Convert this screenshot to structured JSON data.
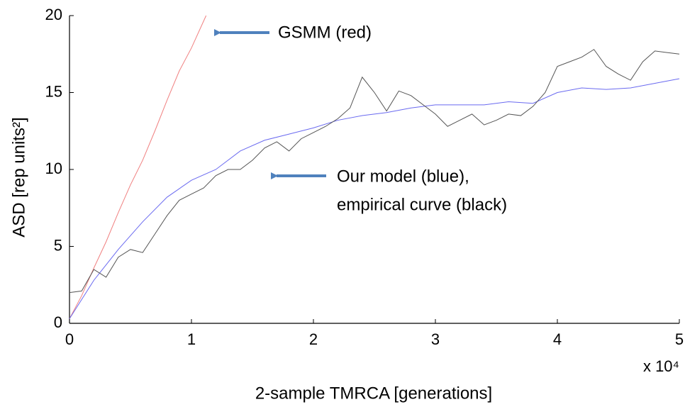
{
  "chart_data": {
    "type": "line",
    "xlabel": "2-sample TMRCA [generations]",
    "ylabel": "ASD [rep units²]",
    "x_multiplier": "x 10⁴",
    "xlim": [
      0,
      5
    ],
    "xticks": [
      0,
      1,
      2,
      3,
      4,
      5
    ],
    "ylim": [
      0,
      20
    ],
    "yticks": [
      0,
      5,
      10,
      15,
      20
    ],
    "grid": false,
    "annotations": [
      "GSMM (red)",
      "Our model (blue),",
      "empirical curve (black)"
    ],
    "series": [
      {
        "name": "GSMM",
        "color": "#f08080",
        "x": [
          0,
          0.1,
          0.2,
          0.3,
          0.4,
          0.5,
          0.6,
          0.7,
          0.8,
          0.9,
          1.0,
          1.12
        ],
        "values": [
          0.3,
          1.8,
          3.6,
          5.3,
          7.2,
          9.0,
          10.6,
          12.5,
          14.5,
          16.4,
          17.9,
          20
        ]
      },
      {
        "name": "Our model",
        "color": "#6a6af0",
        "x": [
          0,
          0.2,
          0.4,
          0.6,
          0.8,
          1.0,
          1.2,
          1.4,
          1.6,
          1.8,
          2.0,
          2.2,
          2.4,
          2.6,
          2.8,
          3.0,
          3.2,
          3.4,
          3.6,
          3.8,
          4.0,
          4.2,
          4.4,
          4.6,
          4.8,
          5.0
        ],
        "values": [
          0.3,
          2.8,
          4.8,
          6.6,
          8.2,
          9.3,
          10.0,
          11.2,
          11.9,
          12.3,
          12.7,
          13.2,
          13.5,
          13.7,
          14.0,
          14.2,
          14.2,
          14.2,
          14.4,
          14.3,
          15.0,
          15.3,
          15.2,
          15.3,
          15.6,
          15.9
        ]
      },
      {
        "name": "empirical curve",
        "color": "#555555",
        "x": [
          0,
          0.1,
          0.2,
          0.3,
          0.4,
          0.5,
          0.6,
          0.7,
          0.8,
          0.9,
          1.0,
          1.1,
          1.2,
          1.3,
          1.4,
          1.5,
          1.6,
          1.7,
          1.8,
          1.9,
          2.0,
          2.1,
          2.2,
          2.3,
          2.4,
          2.5,
          2.6,
          2.7,
          2.8,
          2.9,
          3.0,
          3.1,
          3.2,
          3.3,
          3.4,
          3.5,
          3.6,
          3.7,
          3.8,
          3.9,
          4.0,
          4.1,
          4.2,
          4.3,
          4.4,
          4.5,
          4.6,
          4.7,
          4.8,
          4.9,
          5.0
        ],
        "values": [
          2.0,
          2.1,
          3.5,
          3.0,
          4.3,
          4.8,
          4.6,
          5.8,
          7.0,
          8.0,
          8.4,
          8.8,
          9.6,
          10.0,
          10.0,
          10.6,
          11.4,
          11.8,
          11.2,
          12.0,
          12.4,
          12.8,
          13.3,
          14.0,
          16.0,
          15.0,
          13.8,
          15.1,
          14.8,
          14.2,
          13.6,
          12.8,
          13.2,
          13.6,
          12.9,
          13.2,
          13.6,
          13.5,
          14.1,
          15.0,
          16.7,
          17.0,
          17.3,
          17.8,
          16.7,
          16.2,
          15.8,
          17.0,
          17.7,
          17.6,
          17.5
        ]
      }
    ]
  }
}
